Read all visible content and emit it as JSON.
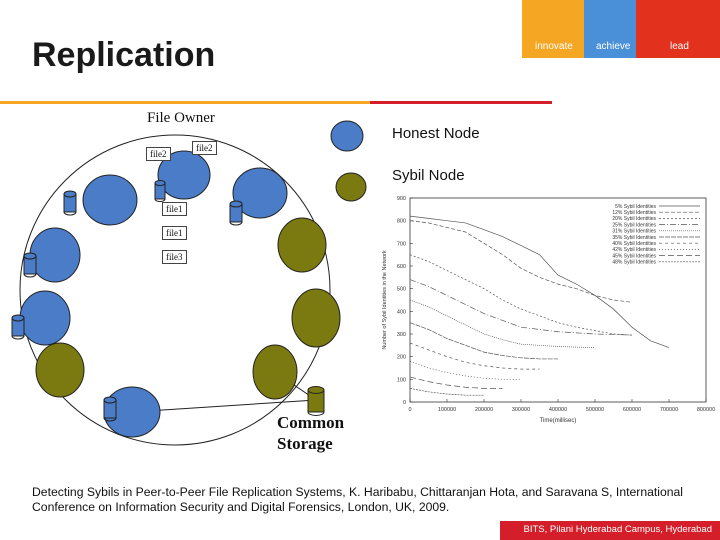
{
  "slide": {
    "title": "Replication",
    "brand": {
      "innovate": "innovate",
      "achieve": "achieve",
      "lead": "lead"
    },
    "colors": {
      "orange": "#f5a623",
      "blue": "#4a90d9",
      "red": "#e2311d",
      "honest": "#4a7cc7",
      "sybil": "#7a7a10"
    }
  },
  "diagram": {
    "file_owner_label": "File Owner",
    "file_tags": {
      "file2_left": "file2",
      "file2_right": "file2",
      "file1_a": "file1",
      "file1_b": "file1",
      "file3": "file3"
    },
    "common_storage_line1": "Common",
    "common_storage_line2": "Storage"
  },
  "legend": {
    "honest": "Honest Node",
    "sybil": "Sybil Node"
  },
  "chart_data": {
    "type": "line",
    "xlabel": "Time(millisec)",
    "ylabel": "Number of Sybil Identities in the Network",
    "xlim": [
      0,
      800000
    ],
    "ylim": [
      0,
      900
    ],
    "xticks": [
      0,
      100000,
      200000,
      300000,
      400000,
      500000,
      600000,
      700000,
      800000
    ],
    "yticks": [
      0,
      100,
      200,
      300,
      400,
      500,
      600,
      700,
      800,
      900
    ],
    "series": [
      {
        "name": "5% Sybil Identities",
        "x": [
          0,
          50000,
          100000,
          150000,
          200000,
          250000,
          300000,
          350000,
          400000,
          450000,
          500000,
          550000,
          600000,
          650000,
          700000
        ],
        "values": [
          820,
          810,
          800,
          790,
          760,
          730,
          690,
          650,
          560,
          520,
          470,
          410,
          330,
          270,
          240
        ]
      },
      {
        "name": "12% Sybil Identities",
        "x": [
          0,
          50000,
          100000,
          150000,
          200000,
          250000,
          300000,
          350000,
          400000,
          450000,
          500000,
          550000,
          600000
        ],
        "values": [
          800,
          790,
          770,
          750,
          700,
          650,
          590,
          550,
          520,
          500,
          470,
          450,
          440
        ]
      },
      {
        "name": "20% Sybil Identities",
        "x": [
          0,
          50000,
          100000,
          150000,
          200000,
          250000,
          300000,
          350000,
          400000,
          450000,
          500000,
          550000,
          600000
        ],
        "values": [
          650,
          620,
          580,
          540,
          500,
          450,
          410,
          380,
          350,
          330,
          315,
          300,
          295
        ]
      },
      {
        "name": "25% Sybil Identities",
        "x": [
          0,
          50000,
          100000,
          150000,
          200000,
          250000,
          300000,
          350000,
          400000,
          450000,
          500000,
          550000,
          600000
        ],
        "values": [
          540,
          510,
          470,
          430,
          390,
          360,
          330,
          320,
          310,
          305,
          300,
          298,
          295
        ]
      },
      {
        "name": "31% Sybil Identities",
        "x": [
          0,
          50000,
          100000,
          150000,
          200000,
          250000,
          300000,
          350000,
          400000,
          450000,
          500000
        ],
        "values": [
          450,
          420,
          380,
          340,
          300,
          275,
          255,
          250,
          245,
          242,
          240
        ]
      },
      {
        "name": "35% Sybil Identities",
        "x": [
          0,
          50000,
          100000,
          150000,
          200000,
          250000,
          300000,
          350000,
          400000
        ],
        "values": [
          350,
          320,
          280,
          250,
          220,
          205,
          195,
          190,
          190
        ]
      },
      {
        "name": "40% Sybil Identities",
        "x": [
          0,
          50000,
          100000,
          150000,
          200000,
          250000,
          300000,
          350000
        ],
        "values": [
          260,
          230,
          200,
          175,
          160,
          150,
          145,
          145
        ]
      },
      {
        "name": "42% Sybil Identities",
        "x": [
          0,
          50000,
          100000,
          150000,
          200000,
          250000,
          300000
        ],
        "values": [
          180,
          150,
          130,
          115,
          105,
          100,
          100
        ]
      },
      {
        "name": "45% Sybil Identities",
        "x": [
          0,
          50000,
          100000,
          150000,
          200000,
          250000
        ],
        "values": [
          110,
          90,
          75,
          65,
          60,
          60
        ]
      },
      {
        "name": "48% Sybil Identities",
        "x": [
          0,
          50000,
          100000,
          150000,
          200000
        ],
        "values": [
          60,
          45,
          35,
          30,
          30
        ]
      }
    ],
    "legend": "top-right",
    "grid": false
  },
  "citation": "Detecting  Sybils  in  Peer-to-Peer File Replication Systems, K. Haribabu, Chittaranjan Hota, and  Saravana S, International Conference on Information Security and Digital Forensics, London, UK, 2009.",
  "footer": "BITS, Pilani Hyderabad Campus, Hyderabad"
}
